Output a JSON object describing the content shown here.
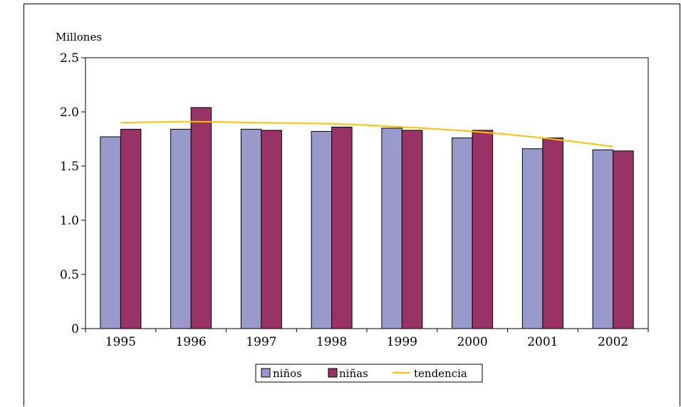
{
  "chart_data": {
    "type": "bar",
    "unit_label": "Millones",
    "categories": [
      "1995",
      "1996",
      "1997",
      "1998",
      "1999",
      "2000",
      "2001",
      "2002"
    ],
    "series": [
      {
        "name": "niños",
        "color": "#9999cc",
        "values": [
          1.77,
          1.84,
          1.84,
          1.82,
          1.85,
          1.76,
          1.66,
          1.65
        ]
      },
      {
        "name": "niñas",
        "color": "#993366",
        "values": [
          1.84,
          2.04,
          1.83,
          1.86,
          1.83,
          1.83,
          1.76,
          1.64
        ]
      }
    ],
    "trend": {
      "name": "tendencia",
      "color": "#ffc000",
      "values": [
        1.9,
        1.91,
        1.9,
        1.89,
        1.86,
        1.82,
        1.76,
        1.68
      ]
    },
    "yticks": [
      "0",
      "0.5",
      "1.0",
      "1.5",
      "2.0",
      "2.5"
    ],
    "ylim": [
      0,
      2.5
    ],
    "grid": false,
    "legend_position": "bottom"
  }
}
